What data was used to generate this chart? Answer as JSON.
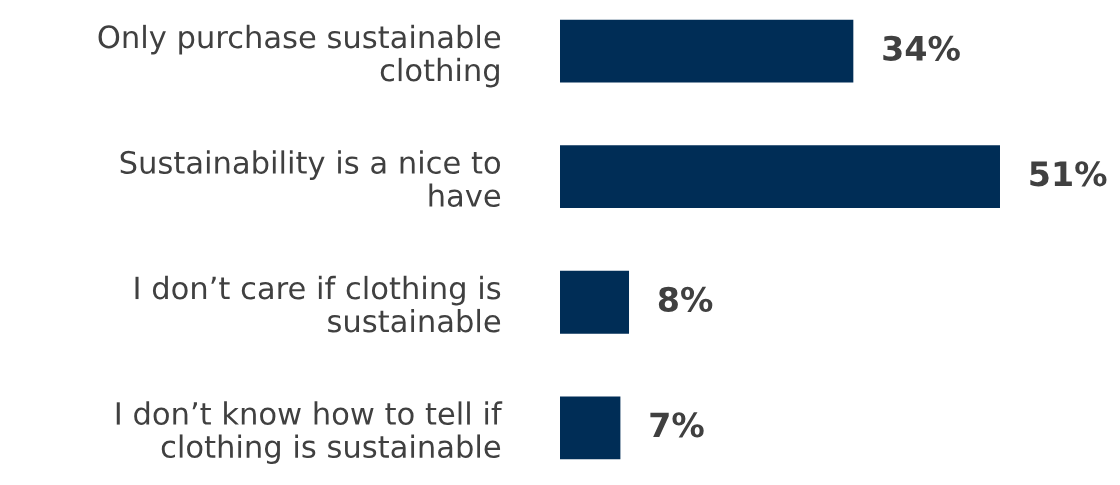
{
  "chart_data": {
    "type": "bar",
    "orientation": "horizontal",
    "categories": [
      "Only purchase sustainable\nclothing",
      "Sustainability is a nice to\nhave",
      "I don’t care if clothing is\nsustainable",
      "I don’t know how to tell if\nclothing is sustainable"
    ],
    "values": [
      34,
      51,
      8,
      7
    ],
    "value_labels": [
      "34%",
      "51%",
      "8%",
      "7%"
    ],
    "color": "#002d56"
  }
}
